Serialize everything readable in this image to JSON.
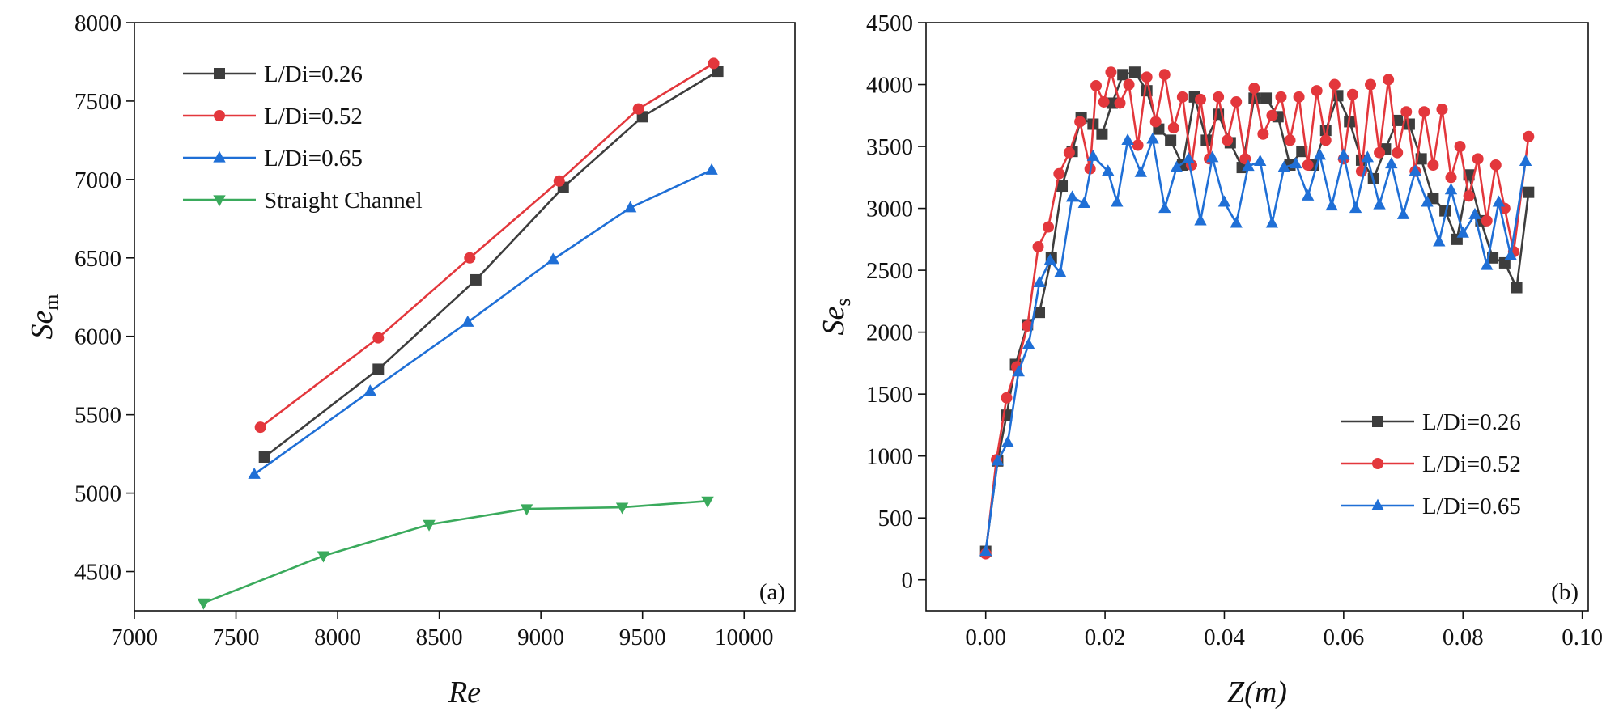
{
  "chart_data": [
    {
      "type": "line",
      "panel_label": "(a)",
      "x_label": "Re",
      "y_label": {
        "main": "Se",
        "sub": "m"
      },
      "xlim": [
        7000,
        10250
      ],
      "xticks": [
        7000,
        7500,
        8000,
        8500,
        9000,
        9500,
        10000
      ],
      "ylim": [
        4250,
        8000
      ],
      "yticks": [
        4500,
        5000,
        5500,
        6000,
        6500,
        7000,
        7500,
        8000
      ],
      "legend": "upper left",
      "series": [
        {
          "name": "L/Di=0.26",
          "color": "#3d3d3d",
          "marker": "square",
          "x": [
            7640,
            8200,
            8680,
            9110,
            9500,
            9870
          ],
          "values": [
            5230,
            5790,
            6360,
            6950,
            7400,
            7690
          ]
        },
        {
          "name": "L/Di=0.52",
          "color": "#e3373c",
          "marker": "circle",
          "x": [
            7620,
            8200,
            8650,
            9090,
            9480,
            9850
          ],
          "values": [
            5420,
            5990,
            6500,
            6990,
            7450,
            7740
          ]
        },
        {
          "name": "L/Di=0.65",
          "color": "#1f6fd6",
          "marker": "triangle-up",
          "x": [
            7590,
            8160,
            8640,
            9060,
            9440,
            9840
          ],
          "values": [
            5120,
            5650,
            6090,
            6490,
            6820,
            7060
          ]
        },
        {
          "name": "Straight Channel",
          "color": "#3aaa5c",
          "marker": "triangle-down",
          "x": [
            7340,
            7930,
            8450,
            8930,
            9400,
            9820
          ],
          "values": [
            4300,
            4600,
            4800,
            4900,
            4910,
            4950
          ]
        }
      ]
    },
    {
      "type": "line",
      "panel_label": "(b)",
      "x_label": "Z(m)",
      "y_label": {
        "main": "Se",
        "sub": "s"
      },
      "xlim": [
        -0.01,
        0.101
      ],
      "xticks": [
        {
          "value": 0,
          "label": "0.00"
        },
        0.02,
        0.04,
        0.06,
        0.08,
        {
          "value": 0.1,
          "label": "0.10"
        }
      ],
      "ylim": [
        -250,
        4500
      ],
      "yticks": [
        0,
        500,
        1000,
        1500,
        2000,
        2500,
        3000,
        3500,
        4000,
        4500
      ],
      "legend": "lower right",
      "series": [
        {
          "name": "L/Di=0.26",
          "color": "#3d3d3d",
          "marker": "square",
          "x": [
            0,
            0.002,
            0.0035,
            0.005,
            0.007,
            0.009,
            0.011,
            0.0128,
            0.0145,
            0.016,
            0.018,
            0.0195,
            0.0212,
            0.023,
            0.025,
            0.027,
            0.029,
            0.031,
            0.033,
            0.035,
            0.037,
            0.039,
            0.041,
            0.043,
            0.045,
            0.047,
            0.049,
            0.051,
            0.053,
            0.055,
            0.057,
            0.059,
            0.061,
            0.063,
            0.065,
            0.067,
            0.069,
            0.071,
            0.073,
            0.075,
            0.077,
            0.079,
            0.081,
            0.083,
            0.085,
            0.087,
            0.089,
            0.091
          ],
          "values": [
            230,
            960,
            1330,
            1740,
            2060,
            2160,
            2600,
            3180,
            3460,
            3730,
            3680,
            3600,
            3850,
            4080,
            4100,
            3950,
            3640,
            3550,
            3350,
            3900,
            3550,
            3760,
            3530,
            3330,
            3890,
            3890,
            3740,
            3350,
            3460,
            3350,
            3630,
            3910,
            3700,
            3390,
            3240,
            3480,
            3710,
            3680,
            3400,
            3080,
            2980,
            2750,
            3270,
            2900,
            2600,
            2560,
            2360,
            3130
          ]
        },
        {
          "name": "L/Di=0.52",
          "color": "#e3373c",
          "marker": "circle",
          "x": [
            0,
            0.0018,
            0.0035,
            0.0052,
            0.007,
            0.0088,
            0.0105,
            0.0123,
            0.014,
            0.0158,
            0.0175,
            0.0185,
            0.0198,
            0.021,
            0.0225,
            0.024,
            0.0255,
            0.027,
            0.0285,
            0.03,
            0.0315,
            0.033,
            0.0345,
            0.036,
            0.0375,
            0.039,
            0.0405,
            0.042,
            0.0435,
            0.045,
            0.0465,
            0.048,
            0.0495,
            0.051,
            0.0525,
            0.054,
            0.0555,
            0.057,
            0.0585,
            0.06,
            0.0615,
            0.063,
            0.0645,
            0.066,
            0.0675,
            0.069,
            0.0705,
            0.072,
            0.0735,
            0.075,
            0.0765,
            0.078,
            0.0795,
            0.081,
            0.0825,
            0.084,
            0.0855,
            0.087,
            0.0885,
            0.091
          ],
          "values": [
            210,
            970,
            1470,
            1720,
            2050,
            2690,
            2850,
            3280,
            3450,
            3700,
            3320,
            3990,
            3860,
            4100,
            3850,
            4000,
            3510,
            4060,
            3700,
            4080,
            3650,
            3900,
            3350,
            3880,
            3400,
            3900,
            3550,
            3860,
            3400,
            3970,
            3600,
            3750,
            3900,
            3550,
            3900,
            3350,
            3950,
            3550,
            4000,
            3400,
            3920,
            3300,
            4000,
            3450,
            4040,
            3450,
            3780,
            3300,
            3780,
            3350,
            3800,
            3250,
            3500,
            3100,
            3400,
            2900,
            3350,
            3000,
            2650,
            3580
          ]
        },
        {
          "name": "L/Di=0.65",
          "color": "#1f6fd6",
          "marker": "triangle-up",
          "x": [
            0,
            0.002,
            0.0037,
            0.0055,
            0.0072,
            0.009,
            0.0108,
            0.0125,
            0.0145,
            0.0165,
            0.018,
            0.0205,
            0.022,
            0.0238,
            0.026,
            0.028,
            0.03,
            0.032,
            0.034,
            0.036,
            0.038,
            0.04,
            0.042,
            0.044,
            0.046,
            0.048,
            0.05,
            0.052,
            0.054,
            0.056,
            0.058,
            0.06,
            0.062,
            0.064,
            0.066,
            0.068,
            0.07,
            0.072,
            0.074,
            0.076,
            0.078,
            0.08,
            0.082,
            0.084,
            0.086,
            0.088,
            0.0905
          ],
          "values": [
            230,
            960,
            1110,
            1680,
            1900,
            2400,
            2580,
            2480,
            3090,
            3040,
            3420,
            3300,
            3050,
            3550,
            3290,
            3560,
            3000,
            3330,
            3400,
            2900,
            3410,
            3050,
            2880,
            3340,
            3380,
            2880,
            3330,
            3360,
            3100,
            3430,
            3020,
            3430,
            3000,
            3410,
            3030,
            3360,
            2950,
            3300,
            3050,
            2730,
            3150,
            2800,
            2950,
            2540,
            3050,
            2620,
            3380
          ]
        }
      ]
    }
  ]
}
